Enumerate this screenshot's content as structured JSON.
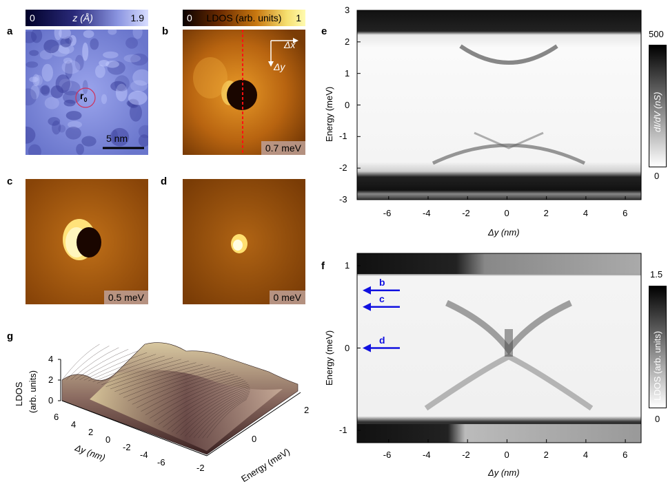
{
  "figure": {
    "panel_labels": {
      "a": "a",
      "b": "b",
      "c": "c",
      "d": "d",
      "e": "e",
      "f": "f",
      "g": "g"
    },
    "topo_colorbar": {
      "min": "0",
      "label": "z (Å)",
      "max": "1.9",
      "color_low": "#000030",
      "color_high": "#c8d0ff"
    },
    "ldos_colorbar": {
      "min": "0",
      "label": "LDOS (arb. units)",
      "max": "1",
      "color_low": "#100400",
      "color_high": "#fff6a0"
    },
    "panel_a": {
      "marker_label": "r",
      "marker_sub": "0",
      "scalebar": "5 nm"
    },
    "panel_b": {
      "energy": "0.7 meV",
      "axis_x": "Δx",
      "axis_y": "Δy"
    },
    "panel_c": {
      "energy": "0.5 meV"
    },
    "panel_d": {
      "energy": "0 meV"
    },
    "panel_e": {
      "ylabel": "Energy (meV)",
      "xlabel": "Δy (nm)",
      "yticks": [
        "3",
        "2",
        "1",
        "0",
        "-1",
        "-2",
        "-3"
      ],
      "xticks": [
        "-6",
        "-4",
        "-2",
        "0",
        "2",
        "4",
        "6"
      ],
      "cbar_max": "500",
      "cbar_min": "0",
      "cbar_label": "dI/dV (nS)"
    },
    "panel_f": {
      "ylabel": "Energy (meV)",
      "xlabel": "Δy (nm)",
      "yticks": [
        "1",
        "0",
        "-1"
      ],
      "xticks": [
        "-6",
        "-4",
        "-2",
        "0",
        "2",
        "4",
        "6"
      ],
      "cbar_max": "1.5",
      "cbar_min": "0",
      "cbar_label": "LDOS (arb. units)",
      "arrows": [
        {
          "label": "b",
          "energy": 0.7
        },
        {
          "label": "c",
          "energy": 0.5
        },
        {
          "label": "d",
          "energy": 0.0
        }
      ],
      "arrow_color": "#1010e0"
    },
    "panel_g": {
      "zlabel_line1": "LDOS",
      "zlabel_line2": "(arb. units)",
      "zticks": [
        "4",
        "2",
        "0"
      ],
      "yticks": [
        "6",
        "4",
        "2",
        "0",
        "-2",
        "-4",
        "-6"
      ],
      "ylabel": "Δy (nm)",
      "xticks": [
        "2",
        "0",
        "-2"
      ],
      "xlabel": "Energy (meV)"
    }
  }
}
